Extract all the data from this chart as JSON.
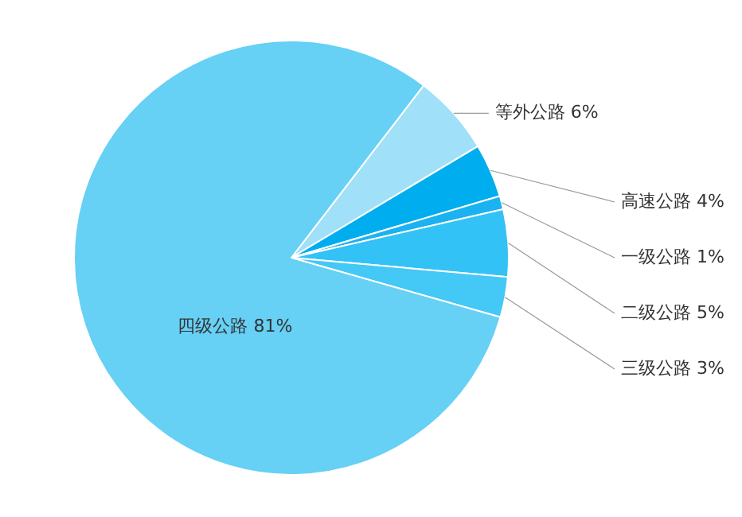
{
  "chart_data": {
    "type": "pie",
    "categories": [
      "等外公路",
      "高速公路",
      "一级公路",
      "二级公路",
      "三级公路",
      "四级公路"
    ],
    "values": [
      6,
      4,
      1,
      5,
      3,
      81
    ],
    "colors": [
      "#a0e0f8",
      "#00aeef",
      "#1ab2f0",
      "#33c2f5",
      "#44c8f5",
      "#66d0f5"
    ],
    "value_labels": [
      "6%",
      "4%",
      "1%",
      "5%",
      "3%",
      "81%"
    ],
    "legend": false
  }
}
